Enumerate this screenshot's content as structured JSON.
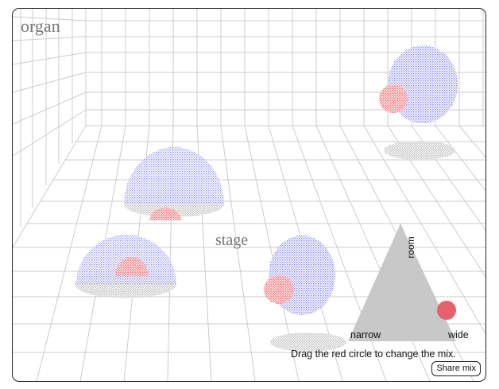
{
  "scene": {
    "room_label": "organ",
    "floor_label": "stage",
    "hint": "Drag the red circle to change the mix.",
    "share_label": "Share mix"
  },
  "mixer": {
    "top_label": "room",
    "left_label": "narrow",
    "right_label": "wide"
  },
  "colors": {
    "grid": "#cccccc",
    "dome_blue": "#1a1ae6",
    "shell_red": "#e8202a",
    "shadow_gray": "#a8a8a8",
    "triangle_gray": "#c8c8c8",
    "handle_red": "#e8606a"
  }
}
